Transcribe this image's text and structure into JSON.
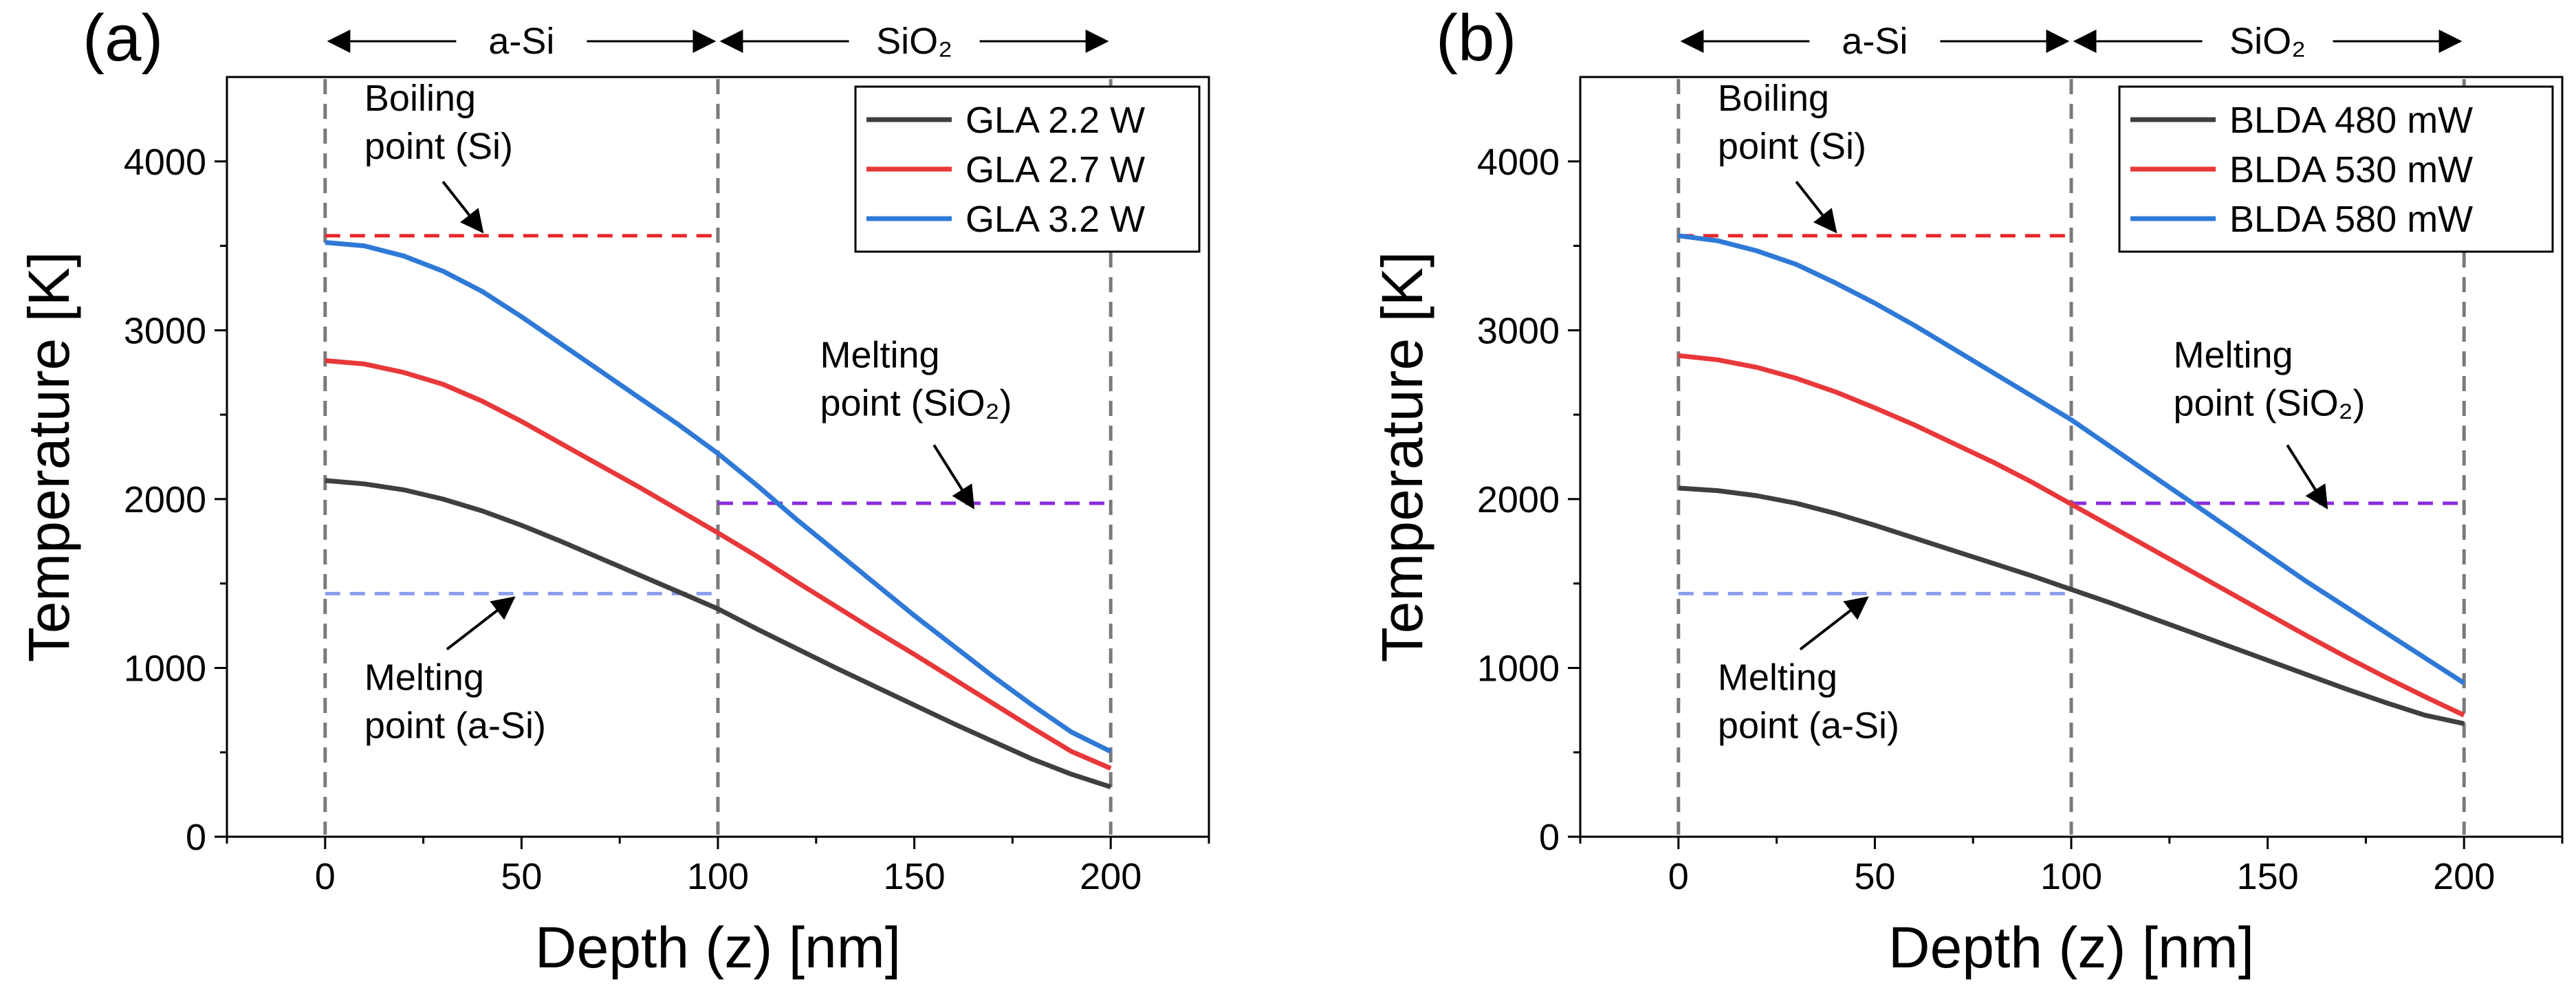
{
  "chart_data": [
    {
      "panel_label": "(a)",
      "type": "line",
      "xlabel": "Depth (z) [nm]",
      "ylabel": "Temperature [K]",
      "xlim": [
        -25,
        225
      ],
      "ylim": [
        0,
        4500
      ],
      "xticks": [
        0,
        50,
        100,
        150,
        200
      ],
      "yticks": [
        0,
        1000,
        2000,
        3000,
        4000
      ],
      "xtick_labels": [
        "0",
        "50",
        "100",
        "150",
        "200"
      ],
      "ytick_labels": [
        "0",
        "1000",
        "2000",
        "3000",
        "4000"
      ],
      "region_labels": [
        {
          "text": "a-Si",
          "x_from": 0,
          "x_to": 100
        },
        {
          "text": "SiO₂",
          "x_from": 100,
          "x_to": 200
        }
      ],
      "boundaries": [
        0,
        100,
        200
      ],
      "reference_lines": [
        {
          "name": "boiling-si",
          "y": 3560,
          "x_from": 0,
          "x_to": 100,
          "color": "#e8262a"
        },
        {
          "name": "melting-sio2",
          "y": 1975,
          "x_from": 100,
          "x_to": 200,
          "color": "#8a2be2"
        },
        {
          "name": "melting-asi",
          "y": 1440,
          "x_from": 0,
          "x_to": 100,
          "color": "#8b9cf0"
        }
      ],
      "annotations": [
        {
          "name": "boiling",
          "lines": [
            "Boiling",
            "point (Si)"
          ],
          "arrow_to": [
            40,
            3560
          ]
        },
        {
          "name": "melting-sio2",
          "lines": [
            "Melting",
            "point (SiO₂)"
          ],
          "arrow_to": [
            165,
            1975
          ]
        },
        {
          "name": "melting-asi",
          "lines": [
            "Melting",
            "point (a-Si)"
          ],
          "arrow_to": [
            48,
            1440
          ]
        }
      ],
      "legend_location": "top-right",
      "series": [
        {
          "name": "GLA 2.2 W",
          "color": "#3f3f3f",
          "x": [
            0,
            10,
            20,
            30,
            40,
            50,
            60,
            70,
            80,
            90,
            100,
            110,
            120,
            130,
            140,
            150,
            160,
            170,
            180,
            190,
            200
          ],
          "y": [
            2110,
            2090,
            2055,
            2000,
            1930,
            1845,
            1750,
            1650,
            1550,
            1450,
            1350,
            1230,
            1115,
            1000,
            890,
            780,
            670,
            565,
            460,
            370,
            295
          ]
        },
        {
          "name": "GLA 2.7 W",
          "color": "#e8383a",
          "x": [
            0,
            10,
            20,
            30,
            40,
            50,
            60,
            70,
            80,
            90,
            100,
            110,
            120,
            130,
            140,
            150,
            160,
            170,
            180,
            190,
            200
          ],
          "y": [
            2820,
            2800,
            2750,
            2680,
            2580,
            2460,
            2330,
            2200,
            2070,
            1935,
            1800,
            1660,
            1510,
            1365,
            1220,
            1080,
            935,
            790,
            645,
            505,
            405
          ]
        },
        {
          "name": "GLA 3.2 W",
          "color": "#2f79d6",
          "x": [
            0,
            10,
            20,
            30,
            40,
            50,
            60,
            70,
            80,
            90,
            100,
            110,
            120,
            130,
            140,
            150,
            160,
            170,
            180,
            190,
            200
          ],
          "y": [
            3520,
            3500,
            3440,
            3350,
            3230,
            3080,
            2920,
            2760,
            2600,
            2440,
            2270,
            2080,
            1880,
            1690,
            1500,
            1310,
            1130,
            950,
            780,
            620,
            505
          ]
        }
      ]
    },
    {
      "panel_label": "(b)",
      "type": "line",
      "xlabel": "Depth (z) [nm]",
      "ylabel": "Temperature [K]",
      "xlim": [
        -25,
        225
      ],
      "ylim": [
        0,
        4500
      ],
      "xticks": [
        0,
        50,
        100,
        150,
        200
      ],
      "yticks": [
        0,
        1000,
        2000,
        3000,
        4000
      ],
      "xtick_labels": [
        "0",
        "50",
        "100",
        "150",
        "200"
      ],
      "ytick_labels": [
        "0",
        "1000",
        "2000",
        "3000",
        "4000"
      ],
      "region_labels": [
        {
          "text": "a-Si",
          "x_from": 0,
          "x_to": 100
        },
        {
          "text": "SiO₂",
          "x_from": 100,
          "x_to": 200
        }
      ],
      "boundaries": [
        0,
        100,
        200
      ],
      "reference_lines": [
        {
          "name": "boiling-si",
          "y": 3560,
          "x_from": 0,
          "x_to": 100,
          "color": "#e8262a"
        },
        {
          "name": "melting-sio2",
          "y": 1975,
          "x_from": 100,
          "x_to": 200,
          "color": "#8a2be2"
        },
        {
          "name": "melting-asi",
          "y": 1440,
          "x_from": 0,
          "x_to": 100,
          "color": "#8b9cf0"
        }
      ],
      "annotations": [
        {
          "name": "boiling",
          "lines": [
            "Boiling",
            "point (Si)"
          ],
          "arrow_to": [
            40,
            3560
          ]
        },
        {
          "name": "melting-sio2",
          "lines": [
            "Melting",
            "point (SiO₂)"
          ],
          "arrow_to": [
            165,
            1975
          ]
        },
        {
          "name": "melting-asi",
          "lines": [
            "Melting",
            "point (a-Si)"
          ],
          "arrow_to": [
            48,
            1440
          ]
        }
      ],
      "legend_location": "top-right",
      "series": [
        {
          "name": "BLDA 480 mW",
          "color": "#3f3f3f",
          "x": [
            0,
            10,
            20,
            30,
            40,
            50,
            60,
            70,
            80,
            90,
            100,
            110,
            120,
            130,
            140,
            150,
            160,
            170,
            180,
            190,
            200
          ],
          "y": [
            2065,
            2050,
            2020,
            1975,
            1915,
            1845,
            1770,
            1695,
            1620,
            1545,
            1465,
            1385,
            1300,
            1215,
            1130,
            1045,
            960,
            875,
            795,
            720,
            670
          ]
        },
        {
          "name": "BLDA 530 mW",
          "color": "#e8383a",
          "x": [
            0,
            10,
            20,
            30,
            40,
            50,
            60,
            70,
            80,
            90,
            100,
            110,
            120,
            130,
            140,
            150,
            160,
            170,
            180,
            190,
            200
          ],
          "y": [
            2850,
            2825,
            2780,
            2715,
            2635,
            2540,
            2440,
            2330,
            2220,
            2100,
            1970,
            1840,
            1710,
            1580,
            1450,
            1320,
            1190,
            1065,
            945,
            830,
            720
          ]
        },
        {
          "name": "BLDA 580 mW",
          "color": "#2f79d6",
          "x": [
            0,
            10,
            20,
            30,
            40,
            50,
            60,
            70,
            80,
            90,
            100,
            110,
            120,
            130,
            140,
            150,
            160,
            170,
            180,
            190,
            200
          ],
          "y": [
            3560,
            3530,
            3470,
            3390,
            3280,
            3160,
            3030,
            2890,
            2750,
            2610,
            2470,
            2310,
            2150,
            1990,
            1830,
            1670,
            1510,
            1360,
            1210,
            1060,
            910
          ]
        }
      ]
    }
  ]
}
